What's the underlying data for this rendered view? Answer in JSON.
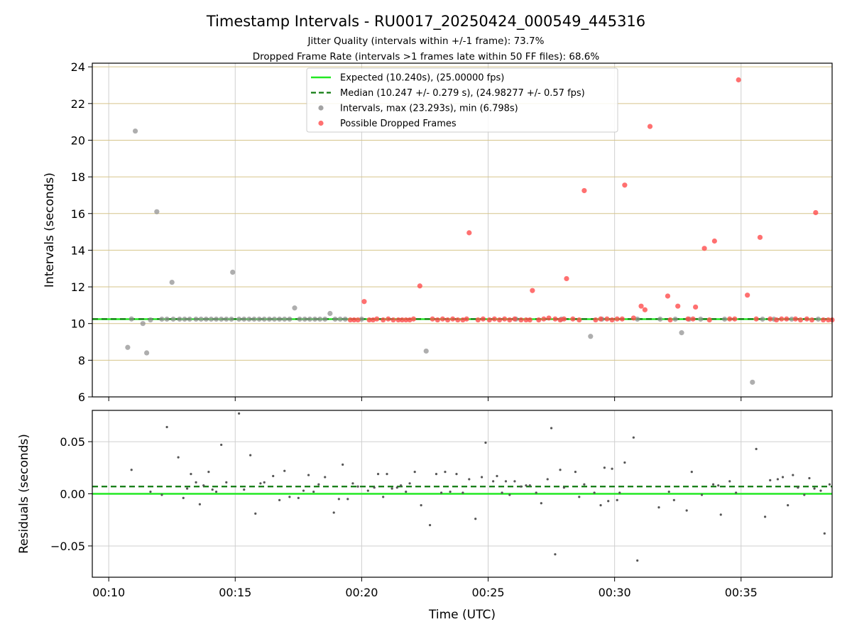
{
  "chart_data": {
    "type": "scatter",
    "title": "Timestamp Intervals - RU0017_20250424_000549_445316",
    "subtitle_lines": [
      "Jitter Quality (intervals within +/-1 frame): 73.7%",
      "Dropped Frame Rate (intervals >1 frames late within 50 FF files): 68.6%"
    ],
    "xlabel": "Time (UTC)",
    "x_ticks": [
      "00:10",
      "00:15",
      "00:20",
      "00:25",
      "00:30",
      "00:35"
    ],
    "x_tick_minutes": [
      10,
      15,
      20,
      25,
      30,
      35
    ],
    "xlim_minutes": [
      9.35,
      38.6
    ],
    "top_panel": {
      "ylabel": "Intervals (seconds)",
      "ylim": [
        6,
        24.2
      ],
      "y_ticks": [
        6,
        8,
        10,
        12,
        14,
        16,
        18,
        20,
        22,
        24
      ],
      "grid": "horizontal-and-vertical",
      "legend_placement": "upper-center",
      "legend": [
        {
          "label": "Expected (10.240s), (25.00000 fps)",
          "style": "solid-line",
          "color": "#22e822"
        },
        {
          "label": "Median (10.247 +/- 0.279 s), (24.98277 +/- 0.57 fps)",
          "style": "dashed-line",
          "color": "#0f7a0f"
        },
        {
          "label": "Intervals, max (23.293s), min (6.798s)",
          "style": "marker",
          "color": "#8c8c8c"
        },
        {
          "label": "Possible Dropped Frames",
          "style": "marker",
          "color": "#ff4c4c"
        }
      ],
      "expected": 10.24,
      "median": 10.247,
      "outlier_intervals": [
        [
          10.75,
          8.7
        ],
        [
          10.9,
          10.25
        ],
        [
          11.05,
          20.5
        ],
        [
          11.35,
          10.0
        ],
        [
          11.5,
          8.4
        ],
        [
          11.65,
          10.2
        ],
        [
          11.9,
          16.1
        ],
        [
          12.5,
          12.25
        ],
        [
          14.9,
          12.8
        ],
        [
          17.35,
          10.85
        ],
        [
          18.75,
          10.55
        ],
        [
          22.55,
          8.5
        ],
        [
          29.05,
          9.3
        ],
        [
          32.65,
          9.5
        ],
        [
          35.45,
          6.8
        ]
      ],
      "regular_interval_minutes": [
        12.1,
        12.3,
        12.55,
        12.8,
        13.0,
        13.2,
        13.45,
        13.65,
        13.85,
        14.05,
        14.25,
        14.45,
        14.65,
        14.85,
        15.15,
        15.35,
        15.55,
        15.75,
        15.95,
        16.15,
        16.35,
        16.55,
        16.75,
        16.95,
        17.15,
        17.55,
        17.75,
        17.95,
        18.15,
        18.35,
        18.55,
        18.95,
        19.15,
        19.35,
        20.0,
        26.1,
        27.9,
        29.5,
        30.9,
        31.8,
        32.4,
        32.95,
        33.4,
        34.35,
        35.85,
        36.3,
        37.0,
        38.05
      ],
      "regular_interval_value": 10.24,
      "dropped_frames": [
        [
          19.55,
          10.2
        ],
        [
          19.7,
          10.2
        ],
        [
          19.85,
          10.2
        ],
        [
          20.1,
          11.2
        ],
        [
          20.3,
          10.2
        ],
        [
          20.45,
          10.2
        ],
        [
          20.6,
          10.25
        ],
        [
          20.85,
          10.2
        ],
        [
          21.05,
          10.25
        ],
        [
          21.25,
          10.2
        ],
        [
          21.45,
          10.2
        ],
        [
          21.6,
          10.2
        ],
        [
          21.75,
          10.2
        ],
        [
          21.9,
          10.2
        ],
        [
          22.05,
          10.25
        ],
        [
          22.3,
          12.05
        ],
        [
          22.8,
          10.25
        ],
        [
          23.0,
          10.2
        ],
        [
          23.2,
          10.25
        ],
        [
          23.4,
          10.2
        ],
        [
          23.6,
          10.25
        ],
        [
          23.8,
          10.2
        ],
        [
          24.0,
          10.2
        ],
        [
          24.15,
          10.25
        ],
        [
          24.25,
          14.95
        ],
        [
          24.6,
          10.2
        ],
        [
          24.8,
          10.25
        ],
        [
          25.05,
          10.2
        ],
        [
          25.25,
          10.25
        ],
        [
          25.45,
          10.2
        ],
        [
          25.65,
          10.25
        ],
        [
          25.85,
          10.2
        ],
        [
          26.05,
          10.25
        ],
        [
          26.3,
          10.2
        ],
        [
          26.5,
          10.2
        ],
        [
          26.65,
          10.2
        ],
        [
          26.75,
          11.8
        ],
        [
          27.0,
          10.2
        ],
        [
          27.2,
          10.25
        ],
        [
          27.4,
          10.3
        ],
        [
          27.65,
          10.25
        ],
        [
          27.85,
          10.2
        ],
        [
          28.0,
          10.25
        ],
        [
          28.1,
          12.45
        ],
        [
          28.35,
          10.25
        ],
        [
          28.6,
          10.2
        ],
        [
          28.8,
          17.25
        ],
        [
          29.25,
          10.2
        ],
        [
          29.45,
          10.25
        ],
        [
          29.7,
          10.25
        ],
        [
          29.9,
          10.2
        ],
        [
          30.1,
          10.25
        ],
        [
          30.3,
          10.25
        ],
        [
          30.4,
          17.55
        ],
        [
          30.75,
          10.3
        ],
        [
          31.05,
          10.95
        ],
        [
          31.2,
          10.75
        ],
        [
          31.4,
          20.75
        ],
        [
          32.1,
          11.5
        ],
        [
          32.2,
          10.2
        ],
        [
          32.5,
          10.95
        ],
        [
          32.9,
          10.25
        ],
        [
          33.1,
          10.25
        ],
        [
          33.2,
          10.9
        ],
        [
          33.55,
          14.1
        ],
        [
          33.75,
          10.2
        ],
        [
          33.95,
          14.5
        ],
        [
          34.55,
          10.25
        ],
        [
          34.75,
          10.25
        ],
        [
          34.9,
          23.29
        ],
        [
          35.25,
          11.55
        ],
        [
          35.6,
          10.25
        ],
        [
          35.75,
          14.7
        ],
        [
          36.15,
          10.25
        ],
        [
          36.4,
          10.2
        ],
        [
          36.6,
          10.25
        ],
        [
          36.8,
          10.25
        ],
        [
          37.15,
          10.25
        ],
        [
          37.35,
          10.2
        ],
        [
          37.6,
          10.25
        ],
        [
          37.8,
          10.2
        ],
        [
          37.95,
          16.05
        ],
        [
          38.25,
          10.2
        ],
        [
          38.45,
          10.2
        ],
        [
          38.6,
          10.2
        ]
      ]
    },
    "bottom_panel": {
      "ylabel": "Residuals (seconds)",
      "ylim": [
        -0.08,
        0.08
      ],
      "y_ticks": [
        -0.05,
        0.0,
        0.05
      ],
      "y_tick_labels": [
        "−0.05",
        "0.00",
        "0.05"
      ],
      "grid": "horizontal-and-vertical",
      "expected_residual": 0.0,
      "median_residual": 0.007,
      "residuals": [
        [
          10.9,
          0.023
        ],
        [
          11.65,
          0.002
        ],
        [
          12.1,
          -0.001
        ],
        [
          12.3,
          0.064
        ],
        [
          12.75,
          0.035
        ],
        [
          12.95,
          -0.004
        ],
        [
          13.1,
          0.005
        ],
        [
          13.25,
          0.019
        ],
        [
          13.45,
          0.011
        ],
        [
          13.6,
          -0.01
        ],
        [
          13.75,
          0.008
        ],
        [
          13.95,
          0.021
        ],
        [
          14.1,
          0.004
        ],
        [
          14.25,
          0.002
        ],
        [
          14.45,
          0.047
        ],
        [
          14.65,
          0.011
        ],
        [
          15.15,
          0.077
        ],
        [
          15.35,
          0.004
        ],
        [
          15.6,
          0.037
        ],
        [
          15.8,
          -0.019
        ],
        [
          16.0,
          0.01
        ],
        [
          16.15,
          0.011
        ],
        [
          16.5,
          0.017
        ],
        [
          16.75,
          -0.006
        ],
        [
          16.95,
          0.022
        ],
        [
          17.15,
          -0.003
        ],
        [
          17.5,
          -0.004
        ],
        [
          17.7,
          0.003
        ],
        [
          17.9,
          0.018
        ],
        [
          18.1,
          0.002
        ],
        [
          18.3,
          0.009
        ],
        [
          18.55,
          0.016
        ],
        [
          18.9,
          -0.018
        ],
        [
          19.1,
          -0.005
        ],
        [
          19.25,
          0.028
        ],
        [
          19.45,
          -0.005
        ],
        [
          19.65,
          0.01
        ],
        [
          19.85,
          0.007
        ],
        [
          20.25,
          0.003
        ],
        [
          20.5,
          0.006
        ],
        [
          20.65,
          0.019
        ],
        [
          20.85,
          -0.003
        ],
        [
          21.0,
          0.019
        ],
        [
          21.2,
          0.005
        ],
        [
          21.4,
          0.006
        ],
        [
          21.55,
          0.008
        ],
        [
          21.75,
          0.002
        ],
        [
          21.9,
          0.01
        ],
        [
          22.1,
          0.021
        ],
        [
          22.35,
          -0.011
        ],
        [
          22.7,
          -0.03
        ],
        [
          22.95,
          0.019
        ],
        [
          23.15,
          0.001
        ],
        [
          23.3,
          0.021
        ],
        [
          23.5,
          0.002
        ],
        [
          23.75,
          0.019
        ],
        [
          24.0,
          0.001
        ],
        [
          24.25,
          0.014
        ],
        [
          24.5,
          -0.024
        ],
        [
          24.75,
          0.016
        ],
        [
          24.9,
          0.049
        ],
        [
          25.2,
          0.012
        ],
        [
          25.35,
          0.017
        ],
        [
          25.55,
          0.001
        ],
        [
          25.7,
          0.012
        ],
        [
          25.85,
          -0.001
        ],
        [
          26.05,
          0.012
        ],
        [
          26.3,
          0.007
        ],
        [
          26.5,
          0.008
        ],
        [
          26.65,
          0.008
        ],
        [
          26.9,
          0.001
        ],
        [
          27.1,
          -0.009
        ],
        [
          27.35,
          0.014
        ],
        [
          27.5,
          0.063
        ],
        [
          27.65,
          -0.058
        ],
        [
          27.85,
          0.023
        ],
        [
          28.0,
          0.006
        ],
        [
          28.45,
          0.021
        ],
        [
          28.6,
          -0.003
        ],
        [
          28.8,
          0.009
        ],
        [
          29.2,
          0.001
        ],
        [
          29.45,
          -0.011
        ],
        [
          29.6,
          0.025
        ],
        [
          29.75,
          -0.007
        ],
        [
          29.9,
          0.024
        ],
        [
          30.1,
          -0.006
        ],
        [
          30.2,
          0.001
        ],
        [
          30.4,
          0.03
        ],
        [
          30.75,
          0.054
        ],
        [
          30.9,
          -0.064
        ],
        [
          31.75,
          -0.013
        ],
        [
          32.15,
          0.002
        ],
        [
          32.35,
          -0.006
        ],
        [
          32.85,
          -0.016
        ],
        [
          33.05,
          0.021
        ],
        [
          33.45,
          -0.001
        ],
        [
          33.9,
          0.009
        ],
        [
          34.1,
          0.008
        ],
        [
          34.2,
          -0.02
        ],
        [
          34.55,
          0.012
        ],
        [
          34.8,
          0.001
        ],
        [
          35.6,
          0.043
        ],
        [
          35.95,
          -0.022
        ],
        [
          36.15,
          0.013
        ],
        [
          36.45,
          0.014
        ],
        [
          36.65,
          0.016
        ],
        [
          36.85,
          -0.011
        ],
        [
          37.05,
          0.018
        ],
        [
          37.25,
          0.006
        ],
        [
          37.5,
          -0.001
        ],
        [
          37.7,
          0.015
        ],
        [
          37.9,
          0.005
        ],
        [
          38.15,
          0.003
        ],
        [
          38.3,
          -0.038
        ],
        [
          38.5,
          0.009
        ]
      ]
    },
    "colors": {
      "expected_line": "#22e822",
      "median_line": "#0f7a0f",
      "regular_marker": "#8c8c8c",
      "dropped_marker": "#ff4c4c",
      "residual_marker": "#555555",
      "grid_vertical": "#cfcfcf",
      "grid_horizontal_top": "#d6c48a",
      "grid_horizontal_bottom": "#cfcfcf",
      "axis": "#000000"
    }
  }
}
